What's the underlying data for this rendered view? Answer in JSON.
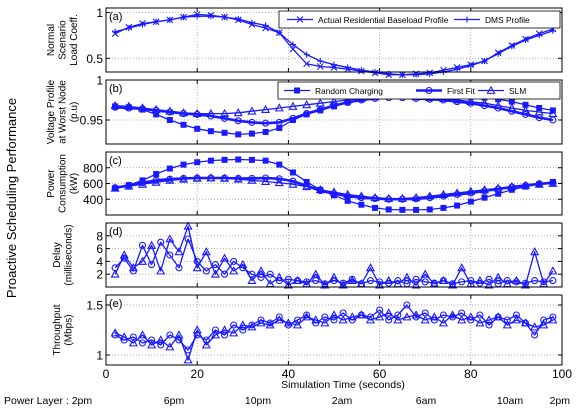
{
  "figure": {
    "super_ylabel": "Proactive Scheduling Performance",
    "xlabel": "Simulation Time (seconds)",
    "xticks": [
      "0",
      "20",
      "40",
      "60",
      "80",
      "100"
    ],
    "power_layer_label": "Power Layer : 2pm",
    "power_layer_ticks": [
      "6pm",
      "10pm",
      "2am",
      "6am",
      "10am",
      "2pm"
    ]
  },
  "chart_data": [
    {
      "type": "line",
      "panel": "(a)",
      "ylabel": [
        "Normal",
        "Scenario",
        "Load Coeff."
      ],
      "xlim": [
        0,
        100
      ],
      "ylim": [
        0.35,
        1.05
      ],
      "yticks": [
        0.5,
        1
      ],
      "ytick_labels": [
        "0.5",
        "1"
      ],
      "grid": true,
      "legend_position": "top-right",
      "x": [
        2,
        5,
        8,
        11,
        14,
        17,
        20,
        23,
        26,
        29,
        32,
        35,
        38,
        41,
        44,
        47,
        50,
        53,
        56,
        59,
        62,
        65,
        68,
        71,
        74,
        77,
        80,
        83,
        86,
        89,
        92,
        95,
        98
      ],
      "series": [
        {
          "name": "Actual Residential Baseload Profile",
          "marker": "x",
          "values": [
            0.77,
            0.84,
            0.88,
            0.9,
            0.92,
            0.95,
            0.98,
            0.97,
            0.95,
            0.92,
            0.87,
            0.83,
            0.78,
            0.6,
            0.44,
            0.41,
            0.4,
            0.38,
            0.36,
            0.34,
            0.32,
            0.32,
            0.33,
            0.34,
            0.37,
            0.4,
            0.43,
            0.47,
            0.56,
            0.64,
            0.71,
            0.77,
            0.82
          ]
        },
        {
          "name": "DMS Profile",
          "marker": "+",
          "values": [
            0.79,
            0.83,
            0.87,
            0.9,
            0.92,
            0.95,
            0.96,
            0.96,
            0.95,
            0.93,
            0.89,
            0.86,
            0.78,
            0.65,
            0.54,
            0.47,
            0.43,
            0.4,
            0.37,
            0.35,
            0.33,
            0.32,
            0.32,
            0.33,
            0.35,
            0.38,
            0.42,
            0.47,
            0.55,
            0.63,
            0.7,
            0.75,
            0.8
          ]
        }
      ]
    },
    {
      "type": "line",
      "panel": "(b)",
      "ylabel": [
        "Voltage Profile",
        "at Worst Node",
        "(p.u)"
      ],
      "xlim": [
        0,
        100
      ],
      "ylim": [
        0.92,
        1.0
      ],
      "yticks": [
        0.95,
        1
      ],
      "ytick_labels": [
        "0.95",
        "1"
      ],
      "grid": true,
      "legend_position": "top-right",
      "x": [
        2,
        5,
        8,
        11,
        14,
        17,
        20,
        23,
        26,
        29,
        32,
        35,
        38,
        41,
        44,
        47,
        50,
        53,
        56,
        59,
        62,
        65,
        68,
        71,
        74,
        77,
        80,
        83,
        86,
        89,
        92,
        95,
        98
      ],
      "series": [
        {
          "name": "Random Charging",
          "marker": "square",
          "values": [
            0.967,
            0.966,
            0.963,
            0.957,
            0.95,
            0.944,
            0.939,
            0.936,
            0.934,
            0.932,
            0.933,
            0.935,
            0.94,
            0.95,
            0.957,
            0.962,
            0.967,
            0.972,
            0.976,
            0.979,
            0.981,
            0.982,
            0.982,
            0.982,
            0.981,
            0.98,
            0.979,
            0.978,
            0.976,
            0.973,
            0.969,
            0.965,
            0.962
          ]
        },
        {
          "name": "First Fit",
          "marker": "circle",
          "values": [
            0.966,
            0.965,
            0.964,
            0.962,
            0.96,
            0.958,
            0.957,
            0.955,
            0.952,
            0.949,
            0.947,
            0.946,
            0.947,
            0.952,
            0.958,
            0.963,
            0.968,
            0.972,
            0.975,
            0.977,
            0.978,
            0.978,
            0.977,
            0.976,
            0.975,
            0.973,
            0.971,
            0.968,
            0.965,
            0.961,
            0.957,
            0.953,
            0.95
          ]
        },
        {
          "name": "SLM",
          "marker": "triangle",
          "values": [
            0.968,
            0.967,
            0.965,
            0.963,
            0.961,
            0.959,
            0.958,
            0.958,
            0.958,
            0.959,
            0.961,
            0.963,
            0.965,
            0.967,
            0.969,
            0.971,
            0.973,
            0.975,
            0.977,
            0.979,
            0.98,
            0.98,
            0.979,
            0.978,
            0.977,
            0.975,
            0.973,
            0.971,
            0.968,
            0.965,
            0.962,
            0.96,
            0.958
          ]
        }
      ]
    },
    {
      "type": "line",
      "panel": "(c)",
      "ylabel": [
        "Power",
        "Consumption",
        "(kW)"
      ],
      "xlim": [
        0,
        100
      ],
      "ylim": [
        200,
        1000
      ],
      "yticks": [
        400,
        600,
        800
      ],
      "ytick_labels": [
        "400",
        "600",
        "800"
      ],
      "grid": true,
      "x": [
        2,
        5,
        8,
        11,
        14,
        17,
        20,
        23,
        26,
        29,
        32,
        35,
        38,
        41,
        44,
        47,
        50,
        53,
        56,
        59,
        62,
        65,
        68,
        71,
        74,
        77,
        80,
        83,
        86,
        89,
        92,
        95,
        98
      ],
      "series": [
        {
          "name": "Random Charging",
          "marker": "square",
          "values": [
            540,
            580,
            640,
            720,
            790,
            840,
            870,
            890,
            900,
            905,
            900,
            890,
            840,
            740,
            620,
            520,
            450,
            380,
            330,
            290,
            270,
            265,
            265,
            270,
            290,
            320,
            370,
            420,
            470,
            520,
            560,
            590,
            620
          ]
        },
        {
          "name": "First Fit",
          "marker": "circle",
          "values": [
            545,
            575,
            610,
            640,
            655,
            665,
            670,
            670,
            670,
            665,
            665,
            670,
            660,
            630,
            570,
            510,
            470,
            440,
            420,
            410,
            400,
            400,
            405,
            420,
            440,
            460,
            480,
            505,
            530,
            555,
            575,
            595,
            610
          ]
        },
        {
          "name": "SLM",
          "marker": "triangle",
          "values": [
            540,
            565,
            590,
            615,
            640,
            655,
            665,
            670,
            665,
            655,
            640,
            625,
            610,
            590,
            560,
            520,
            490,
            460,
            440,
            420,
            410,
            410,
            420,
            440,
            460,
            480,
            500,
            520,
            540,
            560,
            575,
            590,
            600
          ]
        }
      ]
    },
    {
      "type": "line",
      "panel": "(d)",
      "ylabel": [
        "Delay",
        "(milliseconds)"
      ],
      "xlim": [
        0,
        100
      ],
      "ylim": [
        0,
        10
      ],
      "yticks": [
        2,
        4,
        6,
        8
      ],
      "ytick_labels": [
        "2",
        "4",
        "6",
        "8"
      ],
      "grid": true,
      "x": [
        2,
        4,
        6,
        8,
        10,
        12,
        14,
        16,
        18,
        20,
        22,
        24,
        26,
        28,
        30,
        32,
        34,
        36,
        38,
        40,
        42,
        44,
        46,
        48,
        50,
        52,
        54,
        56,
        58,
        60,
        62,
        64,
        66,
        68,
        70,
        72,
        74,
        76,
        78,
        80,
        82,
        84,
        86,
        88,
        90,
        92,
        94,
        96,
        98
      ],
      "series": [
        {
          "name": "First Fit",
          "marker": "circle",
          "values": [
            3.0,
            4.5,
            2.5,
            6.5,
            3.5,
            7.0,
            5.0,
            3.0,
            7.5,
            4.0,
            2.5,
            3.5,
            2.0,
            4.0,
            3.0,
            2.0,
            1.5,
            2.0,
            1.0,
            1.2,
            1.0,
            0.8,
            1.0,
            0.5,
            1.0,
            0.6,
            1.2,
            0.5,
            1.0,
            0.8,
            0.6,
            1.0,
            0.5,
            1.2,
            0.8,
            0.6,
            1.0,
            0.5,
            0.8,
            1.0,
            0.6,
            1.2,
            0.5,
            1.0,
            0.8,
            0.6,
            1.0,
            0.8,
            1.0
          ]
        },
        {
          "name": "SLM",
          "marker": "triangle",
          "values": [
            2.0,
            5.0,
            3.0,
            4.0,
            6.5,
            2.5,
            7.5,
            5.5,
            9.5,
            3.0,
            5.5,
            2.0,
            4.5,
            2.5,
            3.5,
            1.0,
            2.5,
            0.5,
            1.5,
            0.3,
            1.0,
            0.5,
            2.0,
            0.3,
            1.5,
            0.3,
            1.0,
            0.5,
            3.0,
            0.3,
            1.0,
            0.5,
            1.5,
            0.3,
            2.0,
            0.5,
            1.0,
            0.3,
            3.0,
            0.5,
            1.0,
            0.3,
            1.5,
            0.5,
            1.0,
            0.3,
            5.5,
            0.5,
            2.5
          ]
        }
      ]
    },
    {
      "type": "line",
      "panel": "(e)",
      "ylabel": [
        "Throughput",
        "(Mbps)"
      ],
      "xlim": [
        0,
        100
      ],
      "ylim": [
        0.9,
        1.6
      ],
      "yticks": [
        1,
        1.5
      ],
      "ytick_labels": [
        "1",
        "1.5"
      ],
      "grid": true,
      "x": [
        2,
        4,
        6,
        8,
        10,
        12,
        14,
        16,
        18,
        20,
        22,
        24,
        26,
        28,
        30,
        32,
        34,
        36,
        38,
        40,
        42,
        44,
        46,
        48,
        50,
        52,
        54,
        56,
        58,
        60,
        62,
        64,
        66,
        68,
        70,
        72,
        74,
        76,
        78,
        80,
        82,
        84,
        86,
        88,
        90,
        92,
        94,
        96,
        98
      ],
      "series": [
        {
          "name": "First Fit",
          "marker": "circle",
          "values": [
            1.2,
            1.15,
            1.18,
            1.12,
            1.15,
            1.1,
            1.2,
            1.15,
            1.05,
            1.2,
            1.15,
            1.25,
            1.2,
            1.3,
            1.25,
            1.3,
            1.35,
            1.32,
            1.38,
            1.3,
            1.35,
            1.4,
            1.32,
            1.38,
            1.35,
            1.42,
            1.35,
            1.4,
            1.38,
            1.45,
            1.35,
            1.4,
            1.5,
            1.38,
            1.42,
            1.35,
            1.4,
            1.38,
            1.42,
            1.35,
            1.4,
            1.3,
            1.38,
            1.35,
            1.4,
            1.32,
            1.2,
            1.35,
            1.38
          ]
        },
        {
          "name": "SLM",
          "marker": "triangle",
          "values": [
            1.22,
            1.18,
            1.12,
            1.2,
            1.1,
            1.15,
            1.08,
            1.2,
            0.95,
            1.25,
            1.1,
            1.2,
            1.25,
            1.22,
            1.3,
            1.28,
            1.32,
            1.3,
            1.35,
            1.32,
            1.3,
            1.38,
            1.35,
            1.32,
            1.4,
            1.35,
            1.38,
            1.4,
            1.35,
            1.38,
            1.42,
            1.35,
            1.38,
            1.4,
            1.35,
            1.38,
            1.32,
            1.4,
            1.35,
            1.38,
            1.32,
            1.35,
            1.38,
            1.3,
            1.35,
            1.32,
            1.28,
            1.3,
            1.35
          ]
        }
      ]
    }
  ]
}
